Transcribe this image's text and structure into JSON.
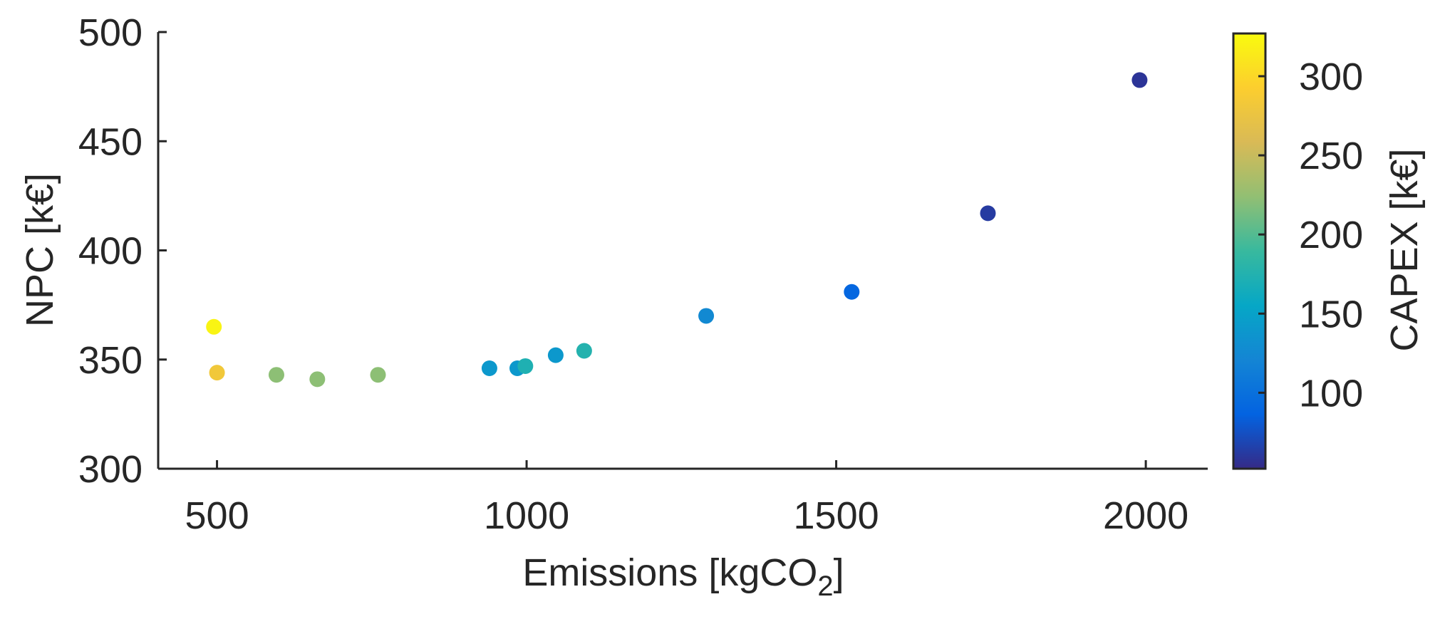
{
  "chart_data": {
    "type": "scatter",
    "title": "",
    "xlabel": "Emissions [kgCO",
    "xlabel_sub": "2",
    "xlabel_close": "]",
    "ylabel": "NPC [k€]",
    "colorbar_label": "CAPEX [k€]",
    "xlim": [
      405,
      2100
    ],
    "ylim": [
      300,
      500
    ],
    "xticks": [
      500,
      1000,
      1500,
      2000
    ],
    "yticks": [
      300,
      350,
      400,
      450,
      500
    ],
    "clim": [
      52,
      327
    ],
    "cticks": [
      100,
      150,
      200,
      250,
      300
    ],
    "colormap": "parula",
    "grid": false,
    "points": [
      {
        "x": 495,
        "y": 365,
        "c": 322
      },
      {
        "x": 500,
        "y": 344,
        "c": 282
      },
      {
        "x": 596,
        "y": 343,
        "c": 222
      },
      {
        "x": 662,
        "y": 341,
        "c": 222
      },
      {
        "x": 760,
        "y": 343,
        "c": 222
      },
      {
        "x": 940,
        "y": 346,
        "c": 140
      },
      {
        "x": 985,
        "y": 346,
        "c": 140
      },
      {
        "x": 998,
        "y": 347,
        "c": 172
      },
      {
        "x": 1047,
        "y": 352,
        "c": 140
      },
      {
        "x": 1093,
        "y": 354,
        "c": 176
      },
      {
        "x": 1290,
        "y": 370,
        "c": 125
      },
      {
        "x": 1525,
        "y": 381,
        "c": 90
      },
      {
        "x": 1745,
        "y": 417,
        "c": 62
      },
      {
        "x": 1990,
        "y": 478,
        "c": 58
      }
    ]
  }
}
